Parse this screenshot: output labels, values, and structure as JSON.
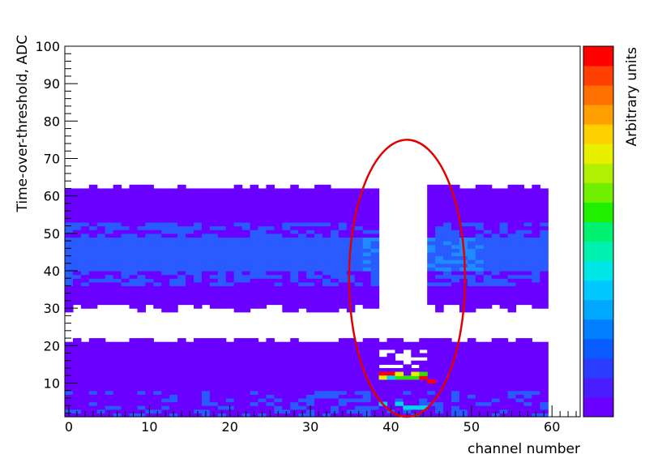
{
  "chart_data": {
    "type": "heatmap",
    "title": "",
    "xlabel": "channel number",
    "ylabel": "Time-over-threshold, ADC",
    "zlabel": "Arbitrary units",
    "xlim": [
      -0.5,
      63.5
    ],
    "ylim": [
      1,
      100
    ],
    "x_ticks": [
      0,
      10,
      20,
      30,
      40,
      50,
      60
    ],
    "y_ticks": [
      10,
      20,
      30,
      40,
      50,
      60,
      70,
      80,
      90,
      100
    ],
    "colors": {
      "low": "#6a00ff",
      "mid": "#2a5bff",
      "high": "#1e8cff",
      "cyan": "#00d6e6",
      "green": "#30e000",
      "yellow": "#e8f000",
      "red": "#ff0000",
      "ellipse": "#e00000"
    },
    "palette": [
      "#6a00ff",
      "#4b1cff",
      "#2a3cff",
      "#0a5cff",
      "#0080ff",
      "#00a8ff",
      "#00c8ff",
      "#00e6e6",
      "#00f0b0",
      "#00f070",
      "#20f000",
      "#70f000",
      "#b0f000",
      "#e8f000",
      "#ffd000",
      "#ffa000",
      "#ff7000",
      "#ff4000",
      "#ff0000"
    ],
    "data": {
      "channels": [
        0,
        59
      ],
      "gap_channels": [
        39,
        44
      ],
      "upper_band": {
        "ymin": 29,
        "ymax": 62,
        "dense_core": [
          37,
          51
        ]
      },
      "lower_band": {
        "ymin": 1,
        "ymax": 21
      },
      "hotspots": [
        {
          "x": 39,
          "y": 12,
          "z": "red"
        },
        {
          "x": 40,
          "y": 12,
          "z": "red"
        },
        {
          "x": 41,
          "y": 11,
          "z": "green"
        },
        {
          "x": 42,
          "y": 11,
          "z": "green"
        },
        {
          "x": 43,
          "y": 11,
          "z": "green"
        },
        {
          "x": 44,
          "y": 11,
          "z": "red"
        },
        {
          "x": 45,
          "y": 10,
          "z": "red"
        },
        {
          "x": 39,
          "y": 11,
          "z": "yellow"
        },
        {
          "x": 40,
          "y": 11,
          "z": "cyan"
        },
        {
          "x": 41,
          "y": 12,
          "z": "yellow"
        },
        {
          "x": 43,
          "y": 12,
          "z": "yellow"
        },
        {
          "x": 44,
          "y": 12,
          "z": "green"
        },
        {
          "x": 39,
          "y": 4,
          "z": "cyan"
        },
        {
          "x": 41,
          "y": 4,
          "z": "cyan"
        },
        {
          "x": 42,
          "y": 3,
          "z": "cyan"
        },
        {
          "x": 43,
          "y": 3,
          "z": "cyan"
        },
        {
          "x": 44,
          "y": 3,
          "z": "cyan"
        }
      ]
    },
    "annotation": {
      "shape": "ellipse",
      "cx": 42,
      "cy": 38,
      "rx": 7.2,
      "ry": 37
    }
  }
}
